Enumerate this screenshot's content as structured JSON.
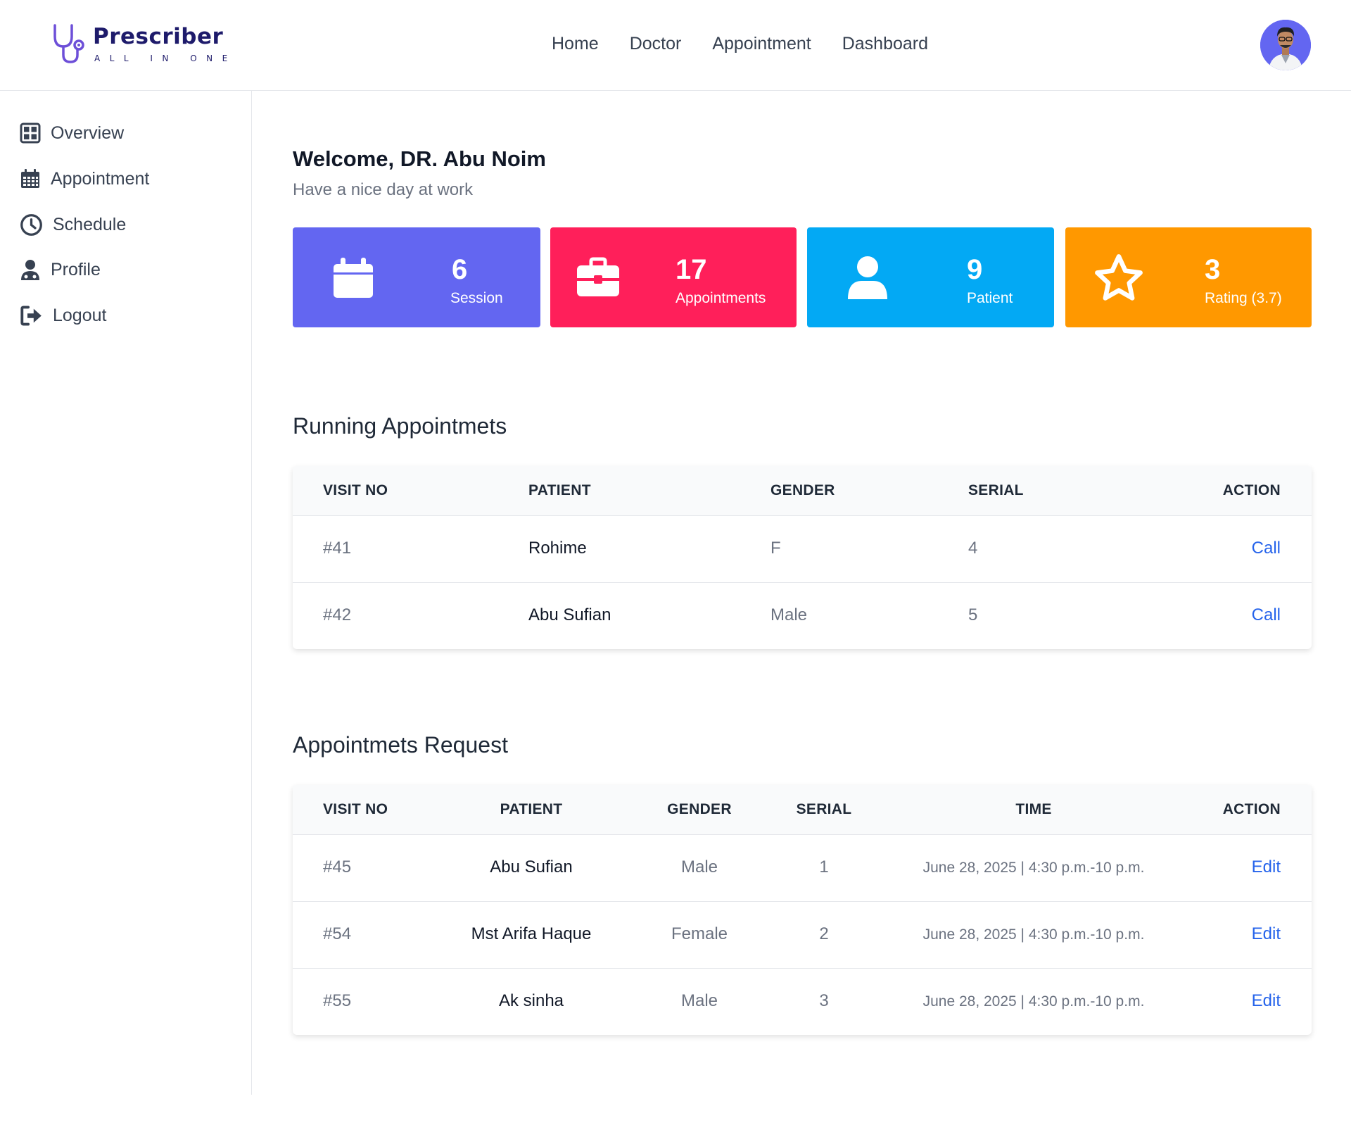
{
  "header": {
    "brand": "Prescriber",
    "tagline": "ALL IN ONE",
    "nav": [
      "Home",
      "Doctor",
      "Appointment",
      "Dashboard"
    ],
    "brand_color": "#1e1b6b"
  },
  "sidebar": {
    "items": [
      {
        "label": "Overview",
        "icon": "grid-icon"
      },
      {
        "label": "Appointment",
        "icon": "calendar-icon"
      },
      {
        "label": "Schedule",
        "icon": "clock-icon"
      },
      {
        "label": "Profile",
        "icon": "doctor-icon"
      },
      {
        "label": "Logout",
        "icon": "logout-icon"
      }
    ]
  },
  "welcome": {
    "title": "Welcome, DR. Abu Noim",
    "subtitle": "Have a nice day at work"
  },
  "stats": [
    {
      "value": "6",
      "label": "Session",
      "color": "#6366f1",
      "icon": "calendar-icon"
    },
    {
      "value": "17",
      "label": "Appointments",
      "color": "#ff1f5a",
      "icon": "briefcase-icon"
    },
    {
      "value": "9",
      "label": "Patient",
      "color": "#03a9f4",
      "icon": "user-icon"
    },
    {
      "value": "3",
      "label": "Rating (3.7)",
      "color": "#ff9800",
      "icon": "star-icon"
    }
  ],
  "running": {
    "title": "Running Appointmets",
    "headers": [
      "VISIT NO",
      "PATIENT",
      "GENDER",
      "SERIAL",
      "ACTION"
    ],
    "rows": [
      {
        "visit": "#41",
        "patient": "Rohime",
        "gender": "F",
        "serial": "4",
        "action": "Call"
      },
      {
        "visit": "#42",
        "patient": "Abu Sufian",
        "gender": "Male",
        "serial": "5",
        "action": "Call"
      }
    ]
  },
  "requests": {
    "title": "Appointmets Request",
    "headers": [
      "VISIT NO",
      "PATIENT",
      "GENDER",
      "SERIAL",
      "TIME",
      "ACTION"
    ],
    "rows": [
      {
        "visit": "#45",
        "patient": "Abu Sufian",
        "gender": "Male",
        "serial": "1",
        "time": "June 28, 2025 | 4:30 p.m.-10 p.m.",
        "action": "Edit"
      },
      {
        "visit": "#54",
        "patient": "Mst Arifa Haque",
        "gender": "Female",
        "serial": "2",
        "time": "June 28, 2025 | 4:30 p.m.-10 p.m.",
        "action": "Edit"
      },
      {
        "visit": "#55",
        "patient": "Ak sinha",
        "gender": "Male",
        "serial": "3",
        "time": "June 28, 2025 | 4:30 p.m.-10 p.m.",
        "action": "Edit"
      }
    ]
  }
}
